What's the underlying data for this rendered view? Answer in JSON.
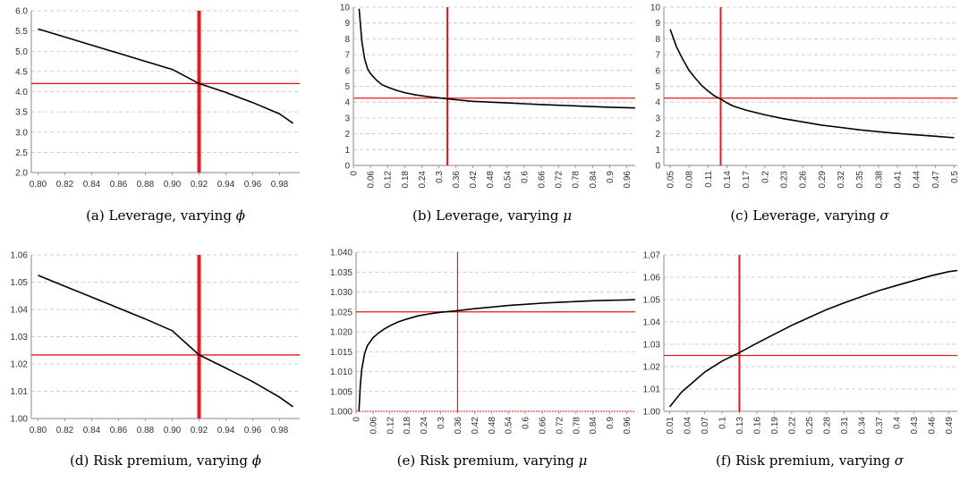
{
  "colors": {
    "curve": "#000000",
    "reference": "#e8191c",
    "grid": "#c0c0c0",
    "axis": "#888888"
  },
  "chart_data": [
    {
      "type": "line",
      "subplot": "(a)",
      "caption": "Leverage, varying",
      "caption_symbol": "ϕ",
      "ylim": [
        2.0,
        6.0
      ],
      "yticks": [
        "2.0",
        "2.5",
        "3.0",
        "3.5",
        "4.0",
        "4.5",
        "5.0",
        "5.5",
        "6.0"
      ],
      "xticks": [
        "0.80",
        "0.82",
        "0.84",
        "0.86",
        "0.88",
        "0.90",
        "0.92",
        "0.94",
        "0.96",
        "0.98"
      ],
      "xlim": [
        0.795,
        0.995
      ],
      "grid": "horizontal dashed",
      "series": [
        {
          "x": [
            0.8,
            0.82,
            0.84,
            0.86,
            0.88,
            0.9,
            0.92,
            0.94,
            0.96,
            0.98,
            0.99
          ],
          "values": [
            5.55,
            5.35,
            5.15,
            4.95,
            4.75,
            4.55,
            4.2,
            3.98,
            3.73,
            3.45,
            3.22
          ]
        }
      ],
      "reference_x": 0.92,
      "reference_y": 4.2
    },
    {
      "type": "line",
      "subplot": "(b)",
      "caption": "Leverage, varying",
      "caption_symbol": "μ",
      "ylim": [
        0,
        10
      ],
      "yticks": [
        "0",
        "1",
        "2",
        "3",
        "4",
        "5",
        "6",
        "7",
        "8",
        "9",
        "10"
      ],
      "xticks": [
        "0",
        "0.06",
        "0.12",
        "0.18",
        "0.24",
        "0.3",
        "0.36",
        "0.42",
        "0.48",
        "0.54",
        "0.6",
        "0.66",
        "0.72",
        "0.78",
        "0.84",
        "0.9",
        "0.96"
      ],
      "xlim": [
        0,
        0.99
      ],
      "grid": "horizontal dashed",
      "series": [
        {
          "x": [
            0.02,
            0.025,
            0.03,
            0.04,
            0.05,
            0.06,
            0.08,
            0.1,
            0.12,
            0.15,
            0.18,
            0.22,
            0.26,
            0.3,
            0.36,
            0.42,
            0.48,
            0.54,
            0.6,
            0.66,
            0.72,
            0.78,
            0.84,
            0.9,
            0.96,
            0.99
          ],
          "values": [
            9.9,
            8.8,
            7.8,
            6.7,
            6.1,
            5.8,
            5.4,
            5.1,
            4.95,
            4.75,
            4.6,
            4.45,
            4.35,
            4.27,
            4.15,
            4.05,
            4.0,
            3.95,
            3.9,
            3.85,
            3.8,
            3.76,
            3.72,
            3.68,
            3.65,
            3.63
          ]
        }
      ],
      "reference_x": 0.33,
      "reference_y": 4.25
    },
    {
      "type": "line",
      "subplot": "(c)",
      "caption": "Leverage, varying",
      "caption_symbol": "σ",
      "ylim": [
        0,
        10
      ],
      "yticks": [
        "0",
        "1",
        "2",
        "3",
        "4",
        "5",
        "6",
        "7",
        "8",
        "9",
        "10"
      ],
      "xticks": [
        "0.05",
        "0.08",
        "0.11",
        "0.14",
        "0.17",
        "0.2",
        "0.23",
        "0.26",
        "0.29",
        "0.32",
        "0.35",
        "0.38",
        "0.41",
        "0.44",
        "0.47",
        "0.5"
      ],
      "xlim": [
        0.04,
        0.505
      ],
      "grid": "horizontal dashed",
      "series": [
        {
          "x": [
            0.05,
            0.06,
            0.07,
            0.08,
            0.09,
            0.1,
            0.11,
            0.12,
            0.13,
            0.14,
            0.15,
            0.17,
            0.2,
            0.23,
            0.26,
            0.29,
            0.32,
            0.35,
            0.38,
            0.41,
            0.44,
            0.47,
            0.5
          ],
          "values": [
            8.6,
            7.5,
            6.7,
            6.0,
            5.5,
            5.05,
            4.7,
            4.4,
            4.2,
            3.95,
            3.75,
            3.5,
            3.2,
            2.95,
            2.75,
            2.55,
            2.4,
            2.25,
            2.13,
            2.02,
            1.93,
            1.85,
            1.75
          ]
        }
      ],
      "reference_x": 0.13,
      "reference_y": 4.25
    },
    {
      "type": "line",
      "subplot": "(d)",
      "caption": "Risk premium, varying",
      "caption_symbol": "ϕ",
      "ylim": [
        1.0,
        1.06
      ],
      "yticks": [
        "1.00",
        "1.01",
        "1.02",
        "1.03",
        "1.04",
        "1.05",
        "1.06"
      ],
      "xticks": [
        "0.80",
        "0.82",
        "0.84",
        "0.86",
        "0.88",
        "0.90",
        "0.92",
        "0.94",
        "0.96",
        "0.98"
      ],
      "xlim": [
        0.795,
        0.995
      ],
      "grid": "horizontal dashed",
      "series": [
        {
          "x": [
            0.8,
            0.82,
            0.84,
            0.86,
            0.88,
            0.9,
            0.92,
            0.94,
            0.96,
            0.98,
            0.99
          ],
          "values": [
            1.0525,
            1.0485,
            1.0445,
            1.0405,
            1.0365,
            1.0322,
            1.0233,
            1.0185,
            1.0135,
            1.0078,
            1.0043
          ]
        }
      ],
      "reference_x": 0.92,
      "reference_y": 1.0233
    },
    {
      "type": "line",
      "subplot": "(e)",
      "caption": "Risk premium, varying",
      "caption_symbol": "μ",
      "ylim": [
        1.0,
        1.04
      ],
      "yticks": [
        "1.000",
        "1.005",
        "1.010",
        "1.015",
        "1.020",
        "1.025",
        "1.030",
        "1.035",
        "1.040"
      ],
      "xticks": [
        "0",
        "0.06",
        "0.12",
        "0.18",
        "0.24",
        "0.3",
        "0.36",
        "0.42",
        "0.48",
        "0.54",
        "0.6",
        "0.66",
        "0.72",
        "0.78",
        "0.84",
        "0.9",
        "0.96"
      ],
      "xlim": [
        0,
        0.99
      ],
      "grid": "horizontal dashed",
      "series": [
        {
          "x": [
            0.01,
            0.015,
            0.02,
            0.03,
            0.04,
            0.06,
            0.08,
            0.1,
            0.12,
            0.15,
            0.18,
            0.22,
            0.26,
            0.3,
            0.36,
            0.42,
            0.48,
            0.54,
            0.6,
            0.66,
            0.72,
            0.78,
            0.84,
            0.9,
            0.96,
            0.99
          ],
          "values": [
            1.0,
            1.0065,
            1.0105,
            1.0145,
            1.0165,
            1.0185,
            1.0197,
            1.0207,
            1.0215,
            1.0225,
            1.0232,
            1.024,
            1.0245,
            1.0249,
            1.0253,
            1.0258,
            1.0262,
            1.0266,
            1.0269,
            1.0272,
            1.0274,
            1.0276,
            1.0278,
            1.0279,
            1.028,
            1.0281
          ]
        }
      ],
      "reference_x": 0.36,
      "reference_y": 1.025
    },
    {
      "type": "line",
      "subplot": "(f)",
      "caption": "Risk premium, varying",
      "caption_symbol": "σ",
      "ylim": [
        1.0,
        1.07
      ],
      "yticks": [
        "1.00",
        "1.01",
        "1.02",
        "1.03",
        "1.04",
        "1.05",
        "1.06",
        "1.07"
      ],
      "xticks": [
        "0.01",
        "0.04",
        "0.07",
        "0.1",
        "0.13",
        "0.16",
        "0.19",
        "0.22",
        "0.25",
        "0.28",
        "0.31",
        "0.34",
        "0.37",
        "0.4",
        "0.43",
        "0.46",
        "0.49"
      ],
      "xlim": [
        0.0,
        0.505
      ],
      "grid": "horizontal dashed",
      "series": [
        {
          "x": [
            0.01,
            0.03,
            0.05,
            0.07,
            0.1,
            0.13,
            0.16,
            0.19,
            0.22,
            0.25,
            0.28,
            0.31,
            0.34,
            0.37,
            0.4,
            0.43,
            0.46,
            0.49,
            0.505
          ],
          "values": [
            1.002,
            1.0085,
            1.013,
            1.0175,
            1.0225,
            1.0263,
            1.0305,
            1.0345,
            1.0385,
            1.042,
            1.0455,
            1.0485,
            1.0513,
            1.054,
            1.0563,
            1.0585,
            1.0607,
            1.0625,
            1.063
          ]
        }
      ],
      "reference_x": 0.13,
      "reference_y": 1.025
    }
  ]
}
